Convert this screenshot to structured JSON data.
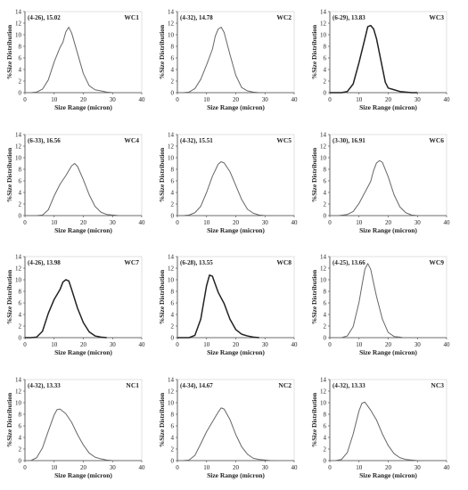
{
  "colors": {
    "curve": "#666666",
    "curve_dark": "#222222",
    "axis": "#444444"
  },
  "chart_data": [
    {
      "type": "line",
      "label": "WC1",
      "annotation": "(4-26), 15.02",
      "xlabel": "Size Range (micron)",
      "ylabel": "%Size Distribution",
      "xlim": [
        0,
        40
      ],
      "ylim": [
        0,
        14
      ],
      "xticks": [
        0,
        10,
        20,
        30,
        40
      ],
      "yticks": [
        0,
        2,
        4,
        6,
        8,
        10,
        12,
        14
      ],
      "grid": false,
      "dark": false,
      "x": [
        0,
        2,
        4,
        6,
        8,
        10,
        12,
        13,
        14,
        15,
        16,
        18,
        20,
        22,
        24,
        26,
        28,
        30
      ],
      "y": [
        0,
        0,
        0.1,
        0.6,
        2.2,
        5.3,
        7.8,
        8.7,
        10.5,
        11.3,
        10.3,
        6.8,
        3.3,
        1.2,
        0.5,
        0.3,
        0.1,
        0
      ]
    },
    {
      "type": "line",
      "label": "WC2",
      "annotation": "(4-32), 14.78",
      "xlabel": "Size Range (micron)",
      "ylabel": "%Size Distribution",
      "xlim": [
        0,
        40
      ],
      "ylim": [
        0,
        14
      ],
      "xticks": [
        0,
        10,
        20,
        30,
        40
      ],
      "yticks": [
        0,
        2,
        4,
        6,
        8,
        10,
        12,
        14
      ],
      "grid": false,
      "dark": false,
      "x": [
        0,
        2,
        4,
        6,
        8,
        10,
        12,
        13,
        14,
        15,
        16,
        18,
        20,
        22,
        24,
        26,
        28,
        30
      ],
      "y": [
        0,
        0,
        0.1,
        0.7,
        2.3,
        4.8,
        7.5,
        9.8,
        11.0,
        11.3,
        10.4,
        6.6,
        3.0,
        0.9,
        0.3,
        0.1,
        0,
        0
      ]
    },
    {
      "type": "line",
      "label": "WC3",
      "annotation": "(6-29), 13.83",
      "xlabel": "Size Range (micron)",
      "ylabel": "%Size Distribution",
      "xlim": [
        0,
        40
      ],
      "ylim": [
        0,
        14
      ],
      "xticks": [
        0,
        10,
        20,
        30,
        40
      ],
      "yticks": [
        0,
        2,
        4,
        6,
        8,
        10,
        12,
        14
      ],
      "grid": false,
      "dark": true,
      "x": [
        0,
        4,
        6,
        8,
        10,
        12,
        13,
        14,
        15,
        16,
        18,
        19,
        20,
        22,
        24,
        26,
        28,
        30
      ],
      "y": [
        0,
        0,
        0.2,
        1.5,
        5.2,
        9.3,
        11.4,
        11.6,
        11.0,
        9.3,
        4.3,
        1.8,
        0.8,
        0.5,
        0.2,
        0.1,
        0,
        0
      ]
    },
    {
      "type": "line",
      "label": "WC4",
      "annotation": "(6-33), 16.56",
      "xlabel": "Size Range (micron)",
      "ylabel": "%Size Distribution",
      "xlim": [
        0,
        40
      ],
      "ylim": [
        0,
        14
      ],
      "xticks": [
        0,
        10,
        20,
        30,
        40
      ],
      "yticks": [
        0,
        2,
        4,
        6,
        8,
        10,
        12,
        14
      ],
      "grid": false,
      "dark": false,
      "x": [
        0,
        4,
        6,
        8,
        10,
        12,
        14,
        16,
        17,
        18,
        20,
        22,
        24,
        26,
        28,
        30,
        32
      ],
      "y": [
        0,
        0,
        0.1,
        1.0,
        3.4,
        5.4,
        6.9,
        8.6,
        9.0,
        8.5,
        6.2,
        3.6,
        1.6,
        0.6,
        0.2,
        0.1,
        0
      ]
    },
    {
      "type": "line",
      "label": "WC5",
      "annotation": "(4-32), 15.51",
      "xlabel": "Size Range (micron)",
      "ylabel": "%Size Distribution",
      "xlim": [
        0,
        40
      ],
      "ylim": [
        0,
        14
      ],
      "xticks": [
        0,
        10,
        20,
        30,
        40
      ],
      "yticks": [
        0,
        2,
        4,
        6,
        8,
        10,
        12,
        14
      ],
      "grid": false,
      "dark": false,
      "x": [
        0,
        2,
        4,
        6,
        8,
        10,
        12,
        14,
        15,
        16,
        18,
        20,
        22,
        24,
        26,
        28,
        30,
        32
      ],
      "y": [
        0,
        0,
        0.1,
        0.5,
        1.6,
        4.0,
        6.8,
        8.9,
        9.3,
        9.1,
        7.6,
        5.2,
        2.8,
        1.1,
        0.4,
        0.1,
        0,
        0
      ]
    },
    {
      "type": "line",
      "label": "WC6",
      "annotation": "(3-30), 16.91",
      "xlabel": "Size Range (micron)",
      "ylabel": "%Size Distribution",
      "xlim": [
        0,
        40
      ],
      "ylim": [
        0,
        14
      ],
      "xticks": [
        0,
        10,
        20,
        30,
        40
      ],
      "yticks": [
        0,
        2,
        4,
        6,
        8,
        10,
        12,
        14
      ],
      "grid": false,
      "dark": false,
      "x": [
        0,
        3,
        6,
        8,
        10,
        12,
        14,
        15,
        16,
        17,
        18,
        20,
        22,
        24,
        26,
        28,
        30
      ],
      "y": [
        0,
        0,
        0.2,
        0.7,
        2.1,
        4.0,
        5.9,
        7.8,
        9.1,
        9.5,
        9.2,
        6.7,
        3.6,
        1.5,
        0.5,
        0.1,
        0
      ]
    },
    {
      "type": "line",
      "label": "WC7",
      "annotation": "(4-26), 13.98",
      "xlabel": "Size Range (micron)",
      "ylabel": "%Size Distribution",
      "xlim": [
        0,
        40
      ],
      "ylim": [
        0,
        14
      ],
      "xticks": [
        0,
        10,
        20,
        30,
        40
      ],
      "yticks": [
        0,
        2,
        4,
        6,
        8,
        10,
        12,
        14
      ],
      "grid": false,
      "dark": true,
      "x": [
        0,
        2,
        4,
        6,
        8,
        10,
        12,
        13,
        14,
        15,
        16,
        18,
        20,
        22,
        24,
        26,
        28
      ],
      "y": [
        0,
        0,
        0.1,
        1.1,
        4.2,
        6.6,
        8.3,
        9.6,
        10.0,
        9.8,
        8.3,
        5.1,
        2.6,
        1.0,
        0.3,
        0.1,
        0
      ]
    },
    {
      "type": "line",
      "label": "WC8",
      "annotation": "(6-28), 13.55",
      "xlabel": "Size Range (micron)",
      "ylabel": "%Size Distribution",
      "xlim": [
        0,
        40
      ],
      "ylim": [
        0,
        14
      ],
      "xticks": [
        0,
        10,
        20,
        30,
        40
      ],
      "yticks": [
        0,
        2,
        4,
        6,
        8,
        10,
        12,
        14
      ],
      "grid": false,
      "dark": true,
      "x": [
        0,
        4,
        6,
        8,
        10,
        11,
        12,
        13,
        14,
        16,
        18,
        20,
        22,
        24,
        26,
        28
      ],
      "y": [
        0,
        0,
        0.4,
        3.2,
        9.0,
        10.8,
        10.6,
        9.2,
        7.8,
        5.9,
        3.2,
        1.4,
        0.6,
        0.3,
        0.1,
        0
      ]
    },
    {
      "type": "line",
      "label": "WC9",
      "annotation": "(4-25), 13.66",
      "xlabel": "Size Range (micron)",
      "ylabel": "%Size Distribution",
      "xlim": [
        0,
        40
      ],
      "ylim": [
        0,
        14
      ],
      "xticks": [
        0,
        10,
        20,
        30,
        40
      ],
      "yticks": [
        0,
        2,
        4,
        6,
        8,
        10,
        12,
        14
      ],
      "grid": false,
      "dark": false,
      "x": [
        0,
        4,
        6,
        8,
        10,
        11,
        12,
        13,
        14,
        15,
        16,
        18,
        20,
        22,
        24,
        25
      ],
      "y": [
        0,
        0,
        0.3,
        1.9,
        6.1,
        9.0,
        11.8,
        12.8,
        11.8,
        9.4,
        7.1,
        3.2,
        0.9,
        0.2,
        0.1,
        0
      ]
    },
    {
      "type": "line",
      "label": "NC1",
      "annotation": "(4-32), 13.33",
      "xlabel": "Size Range (micron)",
      "ylabel": "%Size Distribution",
      "xlim": [
        0,
        40
      ],
      "ylim": [
        0,
        14
      ],
      "xticks": [
        0,
        10,
        20,
        30,
        40
      ],
      "yticks": [
        0,
        2,
        4,
        6,
        8,
        10,
        12,
        14
      ],
      "grid": false,
      "dark": false,
      "x": [
        0,
        2,
        4,
        6,
        8,
        10,
        11,
        12,
        14,
        16,
        18,
        20,
        22,
        24,
        26,
        28,
        30,
        32
      ],
      "y": [
        0,
        0,
        0.5,
        2.2,
        5.1,
        7.9,
        8.8,
        8.9,
        8.1,
        6.6,
        4.5,
        2.7,
        1.3,
        0.6,
        0.3,
        0.1,
        0,
        0
      ]
    },
    {
      "type": "line",
      "label": "NC2",
      "annotation": "(4-34), 14.67",
      "xlabel": "Size Range (micron)",
      "ylabel": "%Size Distribution",
      "xlim": [
        0,
        40
      ],
      "ylim": [
        0,
        14
      ],
      "xticks": [
        0,
        10,
        20,
        30,
        40
      ],
      "yticks": [
        0,
        2,
        4,
        6,
        8,
        10,
        12,
        14
      ],
      "grid": false,
      "dark": false,
      "x": [
        0,
        2,
        4,
        6,
        8,
        10,
        12,
        14,
        15,
        16,
        18,
        20,
        22,
        24,
        26,
        28,
        30,
        32,
        34
      ],
      "y": [
        0,
        0,
        0.1,
        0.9,
        2.9,
        5.0,
        6.7,
        8.4,
        9.1,
        8.9,
        7.1,
        4.5,
        2.4,
        1.1,
        0.4,
        0.2,
        0.1,
        0,
        0
      ]
    },
    {
      "type": "line",
      "label": "NC3",
      "annotation": "(4-32), 13.33",
      "xlabel": "Size Range (micron)",
      "ylabel": "%Size Distribution",
      "xlim": [
        0,
        40
      ],
      "ylim": [
        0,
        14
      ],
      "xticks": [
        0,
        10,
        20,
        30,
        40
      ],
      "yticks": [
        0,
        2,
        4,
        6,
        8,
        10,
        12,
        14
      ],
      "grid": false,
      "dark": false,
      "x": [
        0,
        2,
        4,
        6,
        8,
        10,
        11,
        12,
        14,
        16,
        18,
        20,
        22,
        24,
        26,
        28,
        30,
        32
      ],
      "y": [
        0,
        0,
        0.2,
        1.4,
        4.6,
        8.6,
        9.9,
        10.1,
        8.7,
        7.0,
        4.6,
        2.6,
        1.2,
        0.5,
        0.2,
        0.1,
        0,
        0
      ]
    }
  ]
}
